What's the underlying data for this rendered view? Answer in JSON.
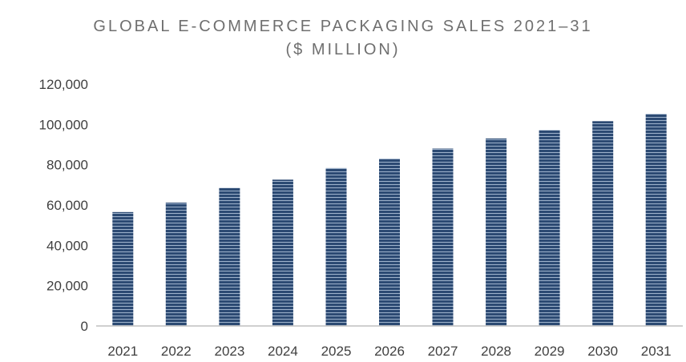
{
  "chart_data": {
    "type": "bar",
    "title": "GLOBAL E-COMMERCE PACKAGING SALES 2021–31",
    "subtitle": "($ MILLION)",
    "categories": [
      "2021",
      "2022",
      "2023",
      "2024",
      "2025",
      "2026",
      "2027",
      "2028",
      "2029",
      "2030",
      "2031"
    ],
    "values": [
      56500,
      61200,
      68500,
      72600,
      78300,
      83000,
      88000,
      93000,
      97200,
      101600,
      105200
    ],
    "ylim": [
      0,
      120000
    ],
    "yticks": [
      "0",
      "20,000",
      "40,000",
      "60,000",
      "80,000",
      "100,000",
      "120,000"
    ],
    "ytick_values": [
      0,
      20000,
      40000,
      60000,
      80000,
      100000,
      120000
    ],
    "xlabel": "",
    "ylabel": "",
    "grid": false,
    "legend": "none",
    "colors": {
      "bar_fill": "#2c4a73",
      "bar_stripe": "#9fb3cc",
      "axis_line": "#bfbfbf",
      "title_text": "#6f6f6f",
      "tick_text": "#3f3f3f"
    }
  }
}
